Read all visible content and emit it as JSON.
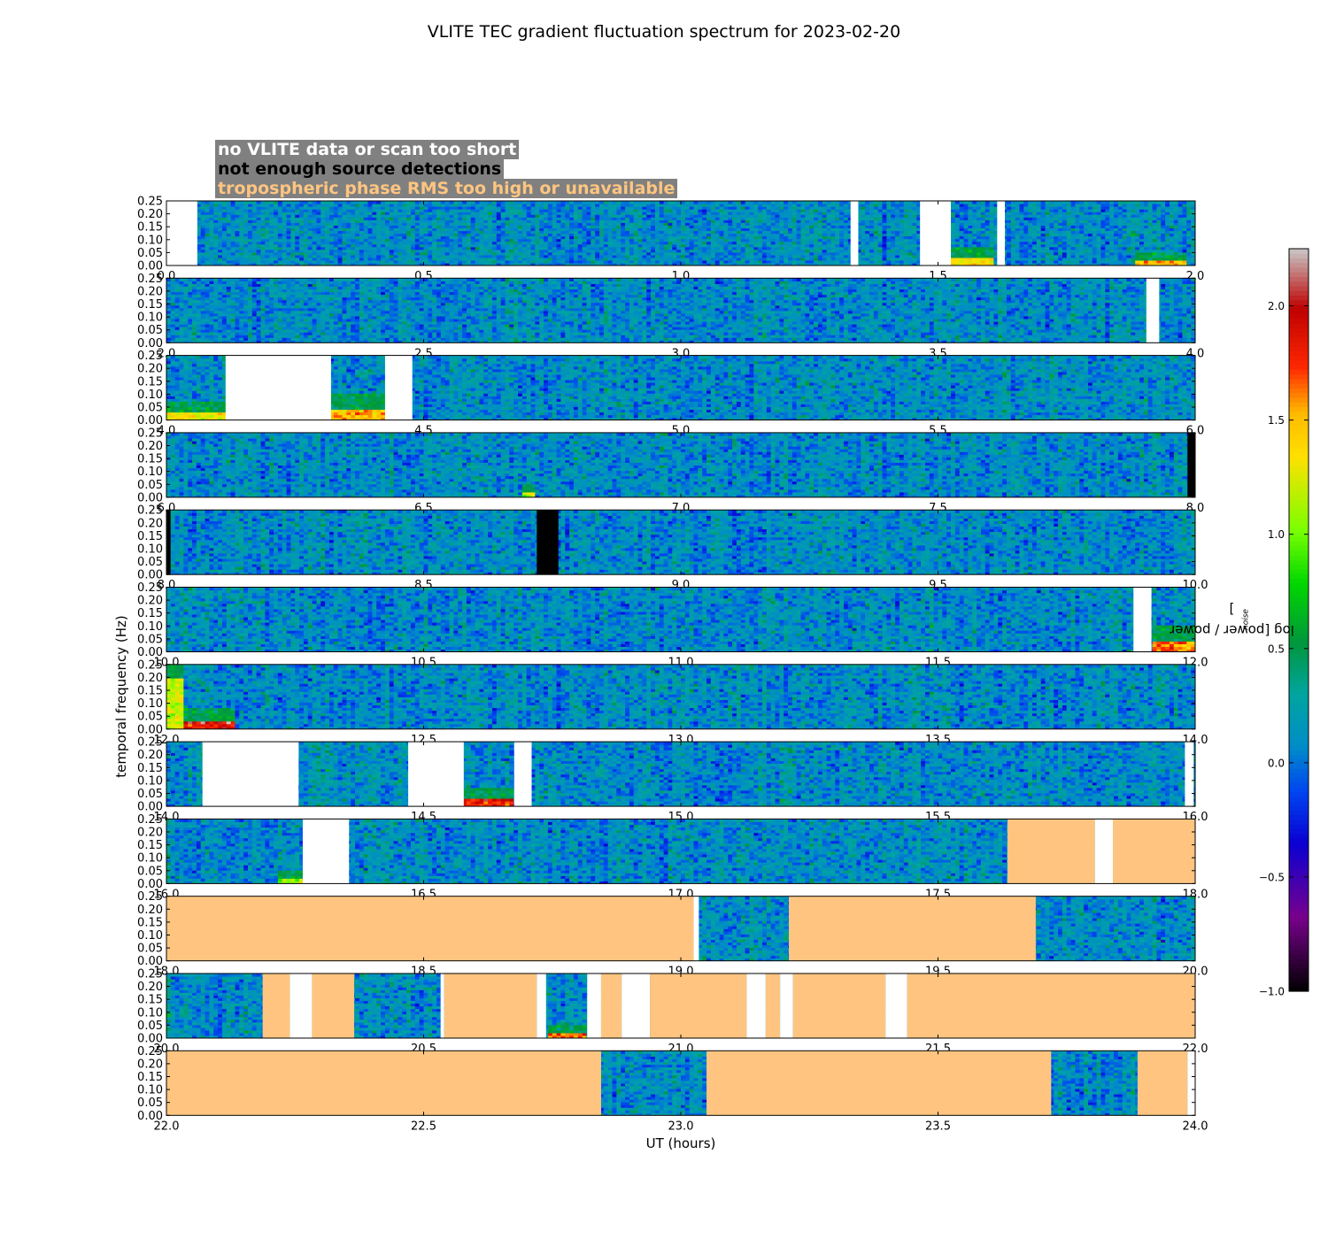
{
  "chart_data": {
    "type": "heatmap",
    "title": "VLITE TEC gradient fluctuation spectrum for 2023-02-20",
    "xlabel": "UT (hours)",
    "ylabel": "temporal frequency (Hz)",
    "colorbar": {
      "label_main": "log [power / power",
      "label_sub": "noise",
      "label_end": "]",
      "range": [
        -1.0,
        2.25
      ],
      "ticks": [
        "−1.0",
        "−0.5",
        "0.0",
        "0.5",
        "1.0",
        "1.5",
        "2.0"
      ],
      "tick_values": [
        -1.0,
        -0.5,
        0.0,
        0.5,
        1.0,
        1.5,
        2.0
      ]
    },
    "ylim": [
      0,
      0.25
    ],
    "yticks": [
      "0.00",
      "0.05",
      "0.10",
      "0.15",
      "0.20",
      "0.25"
    ],
    "ytick_values": [
      0,
      0.05,
      0.1,
      0.15,
      0.2,
      0.25
    ],
    "legend": [
      {
        "text": "no VLITE data or scan too short",
        "color": "#ffffff"
      },
      {
        "text": "not enough source detections",
        "color": "#000000"
      },
      {
        "text": "tropospheric phase RMS too high or unavailable",
        "color": "#ffc580"
      }
    ],
    "mask_colors": {
      "nodata": "#ffffff",
      "nodet": "#000000",
      "trop": "#ffc580"
    },
    "panels": [
      {
        "xlim": [
          0,
          2
        ],
        "xticks": [
          "0.0",
          "0.5",
          "1.0",
          "1.5",
          "2.0"
        ],
        "masks": [
          [
            "nodata",
            0,
            0.06
          ],
          [
            "nodata",
            1.33,
            1.345
          ],
          [
            "nodata",
            1.465,
            1.525
          ],
          [
            "nodata",
            1.615,
            1.63
          ]
        ],
        "hot": [
          [
            1.525,
            1.61,
            0.03,
            1.4
          ],
          [
            1.88,
            1.98,
            0.02,
            1.5
          ]
        ]
      },
      {
        "xlim": [
          2,
          4
        ],
        "xticks": [
          "2.0",
          "2.5",
          "3.0",
          "3.5",
          "4.0"
        ],
        "masks": [
          [
            "nodata",
            3.905,
            3.93
          ]
        ],
        "hot": []
      },
      {
        "xlim": [
          4,
          6
        ],
        "xticks": [
          "4.0",
          "4.5",
          "5.0",
          "5.5",
          "6.0"
        ],
        "masks": [
          [
            "nodata",
            4.115,
            4.32
          ],
          [
            "nodata",
            4.425,
            4.478
          ]
        ],
        "hot": [
          [
            4.0,
            4.115,
            0.03,
            1.3
          ],
          [
            4.32,
            4.425,
            0.04,
            1.5
          ]
        ]
      },
      {
        "xlim": [
          6,
          8
        ],
        "xticks": [
          "6.0",
          "6.5",
          "7.0",
          "7.5",
          "8.0"
        ],
        "masks": [
          [
            "nodet",
            7.985,
            8.0
          ]
        ],
        "hot": [
          [
            6.69,
            6.72,
            0.02,
            1.2
          ]
        ]
      },
      {
        "xlim": [
          8,
          10
        ],
        "xticks": [
          "8.0",
          "8.5",
          "9.0",
          "9.5",
          "10.0"
        ],
        "masks": [
          [
            "nodet",
            8.0,
            8.008
          ],
          [
            "nodet",
            8.72,
            8.762
          ]
        ],
        "hot": []
      },
      {
        "xlim": [
          10,
          12
        ],
        "xticks": [
          "10.0",
          "10.5",
          "11.0",
          "11.5",
          "12.0"
        ],
        "masks": [
          [
            "nodata",
            11.88,
            11.915
          ]
        ],
        "hot": [
          [
            11.915,
            12.0,
            0.04,
            1.6
          ]
        ]
      },
      {
        "xlim": [
          12,
          14
        ],
        "xticks": [
          "12.0",
          "12.5",
          "13.0",
          "13.5",
          "14.0"
        ],
        "masks": [],
        "hot": [
          [
            12.0,
            12.135,
            0.035,
            1.9
          ],
          [
            12.0,
            12.03,
            0.2,
            1.2
          ]
        ]
      },
      {
        "xlim": [
          14,
          16
        ],
        "xticks": [
          "14.0",
          "14.5",
          "15.0",
          "15.5",
          "16.0"
        ],
        "masks": [
          [
            "nodata",
            14.07,
            14.257
          ],
          [
            "nodata",
            14.47,
            14.578
          ],
          [
            "nodata",
            14.676,
            14.71
          ],
          [
            "nodata",
            15.98,
            15.997
          ]
        ],
        "hot": [
          [
            14.578,
            14.676,
            0.03,
            1.8
          ]
        ]
      },
      {
        "xlim": [
          16,
          18
        ],
        "xticks": [
          "16.0",
          "16.5",
          "17.0",
          "17.5",
          "18.0"
        ],
        "masks": [
          [
            "nodata",
            16.265,
            16.355
          ],
          [
            "trop",
            17.635,
            17.805
          ],
          [
            "nodata",
            17.805,
            17.84
          ],
          [
            "trop",
            17.84,
            18.0
          ]
        ],
        "hot": [
          [
            16.22,
            16.265,
            0.02,
            1.1
          ]
        ]
      },
      {
        "xlim": [
          18,
          20
        ],
        "xticks": [
          "18.0",
          "18.5",
          "19.0",
          "19.5",
          "20.0"
        ],
        "masks": [
          [
            "trop",
            18.0,
            19.025
          ],
          [
            "nodata",
            19.025,
            19.035
          ],
          [
            "trop",
            19.21,
            19.69
          ]
        ],
        "hot": []
      },
      {
        "xlim": [
          20,
          22
        ],
        "xticks": [
          "20.0",
          "20.5",
          "21.0",
          "21.5",
          "22.0"
        ],
        "masks": [
          [
            "trop",
            20.187,
            20.24
          ],
          [
            "nodata",
            20.24,
            20.283
          ],
          [
            "trop",
            20.283,
            20.365
          ],
          [
            "nodata",
            20.533,
            20.54
          ],
          [
            "trop",
            20.54,
            20.72
          ],
          [
            "nodata",
            20.72,
            20.738
          ],
          [
            "nodata",
            20.818,
            20.845
          ],
          [
            "trop",
            20.845,
            20.885
          ],
          [
            "nodata",
            20.885,
            20.94
          ],
          [
            "trop",
            20.94,
            21.128
          ],
          [
            "nodata",
            21.128,
            21.165
          ],
          [
            "trop",
            21.165,
            21.193
          ],
          [
            "nodata",
            21.193,
            21.218
          ],
          [
            "trop",
            21.218,
            21.398
          ],
          [
            "nodata",
            21.398,
            21.44
          ],
          [
            "trop",
            21.44,
            22.0
          ]
        ],
        "hot": [
          [
            20.738,
            20.818,
            0.02,
            1.6
          ]
        ]
      },
      {
        "xlim": [
          22,
          24
        ],
        "xticks": [
          "22.0",
          "22.5",
          "23.0",
          "23.5",
          "24.0"
        ],
        "masks": [
          [
            "trop",
            22.0,
            22.845
          ],
          [
            "trop",
            23.05,
            23.72
          ],
          [
            "trop",
            23.888,
            23.985
          ],
          [
            "nodata",
            23.985,
            24.0
          ]
        ],
        "hot": []
      }
    ]
  }
}
